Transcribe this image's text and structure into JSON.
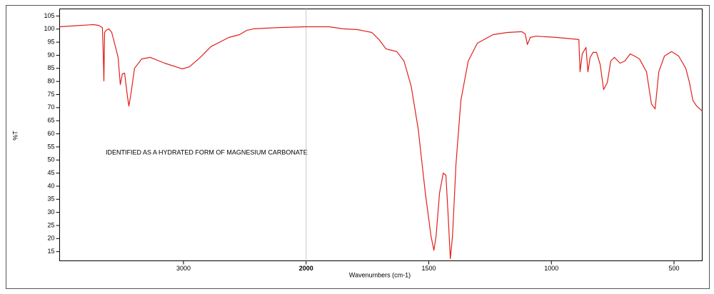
{
  "chart_data": {
    "type": "line",
    "x_label": "Wavenumbers (cm-1)",
    "y_label": "%T",
    "annotation": "IDENTIFIED AS A HYDRATED FORM OF MAGNESIUM CARBONATE",
    "color": "#e0201b",
    "xlim": [
      4010,
      385
    ],
    "x_break": 2000,
    "x_expansion": 2,
    "cursor": 2000,
    "xticks": [
      3000,
      2000,
      1500,
      1000,
      500
    ],
    "ylim": [
      11.5,
      107.7
    ],
    "yticks": [
      15,
      20,
      25,
      30,
      35,
      40,
      45,
      50,
      55,
      60,
      65,
      70,
      75,
      80,
      85,
      90,
      95,
      100,
      105
    ],
    "x": [
      4010,
      3911,
      3736,
      3690,
      3661,
      3655,
      3649,
      3643,
      3632,
      3608,
      3585,
      3562,
      3533,
      3515,
      3498,
      3480,
      3457,
      3445,
      3428,
      3399,
      3341,
      3271,
      3154,
      3009,
      2951,
      2863,
      2776,
      2630,
      2543,
      2485,
      2427,
      2223,
      2000,
      1907,
      1849,
      1790,
      1732,
      1703,
      1674,
      1651,
      1630,
      1601,
      1572,
      1543,
      1514,
      1491,
      1479,
      1470,
      1456,
      1441,
      1430,
      1421,
      1412,
      1403,
      1389,
      1369,
      1339,
      1302,
      1238,
      1179,
      1121,
      1107,
      1098,
      1086,
      1063,
      976,
      888,
      883,
      874,
      859,
      851,
      842,
      830,
      816,
      801,
      787,
      772,
      758,
      743,
      720,
      700,
      679,
      661,
      641,
      612,
      592,
      577,
      562,
      539,
      510,
      481,
      452,
      437,
      423,
      408,
      385
    ],
    "values": [
      100.9,
      101.2,
      101.7,
      101.4,
      100.6,
      91.9,
      80.2,
      98.7,
      99.5,
      100.1,
      98.7,
      94.6,
      89.2,
      78.8,
      82.9,
      83.2,
      74.2,
      70.6,
      75.5,
      85,
      88.6,
      89.2,
      87,
      84.8,
      85.6,
      89.2,
      93.3,
      96.8,
      97.9,
      99.5,
      100.1,
      100.6,
      100.9,
      100.9,
      100.1,
      99.8,
      98.7,
      96,
      92.4,
      91.9,
      91.4,
      87.8,
      78.3,
      61.9,
      37.4,
      21,
      15.5,
      21,
      37.4,
      45,
      44.2,
      29.2,
      12.3,
      21,
      48.3,
      72.8,
      87.8,
      94.6,
      97.9,
      98.7,
      99,
      98.2,
      94.1,
      96.8,
      97.3,
      96.8,
      96,
      83.7,
      90.5,
      93,
      83.7,
      89.2,
      91.1,
      91.1,
      86.5,
      76.9,
      79.6,
      87.8,
      89.2,
      87,
      87.8,
      90.5,
      89.7,
      88.6,
      83.7,
      71.4,
      69.5,
      83.7,
      89.7,
      91.4,
      89.7,
      85,
      79.6,
      72.8,
      70.6,
      68.7
    ]
  }
}
